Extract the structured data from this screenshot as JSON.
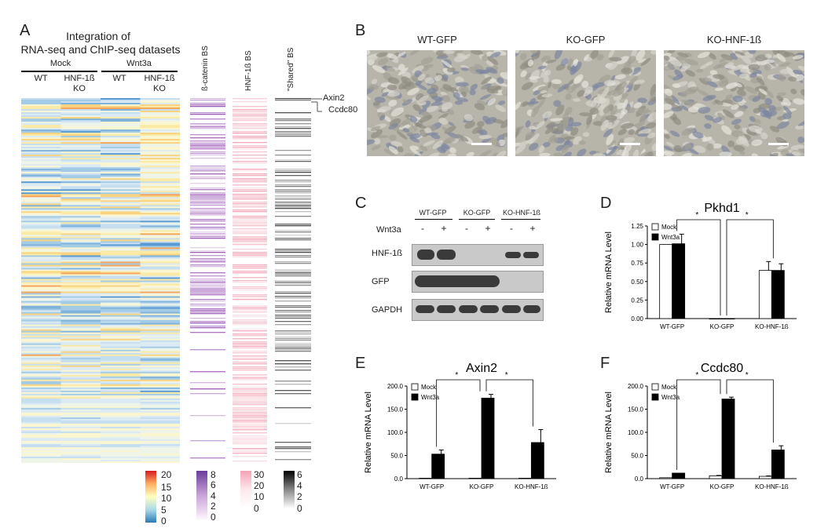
{
  "panelA": {
    "letter": "A",
    "title_line1": "Integration of",
    "title_line2": "RNA-seq and ChIP-seq datasets",
    "groups": [
      "Mock",
      "Wnt3a"
    ],
    "columns": [
      "WT",
      "HNF-1ß\nKO",
      "WT",
      "HNF-1ß\nKO"
    ],
    "tracks": [
      "ß-catenin BS",
      "HNF-1ß BS",
      "\"Shared\" BS"
    ],
    "gene_labels": [
      "Axin2",
      "Ccdc80"
    ],
    "scales": [
      {
        "ticks": [
          "20",
          "15",
          "10",
          "5",
          "0"
        ]
      },
      {
        "ticks": [
          "8",
          "6",
          "4",
          "2",
          "0"
        ]
      },
      {
        "ticks": [
          "30",
          "20",
          "10",
          "0"
        ]
      },
      {
        "ticks": [
          "6",
          "4",
          "2",
          "0"
        ]
      }
    ]
  },
  "panelB": {
    "letter": "B",
    "images": [
      "WT-GFP",
      "KO-GFP",
      "KO-HNF-1ß"
    ]
  },
  "panelC": {
    "letter": "C",
    "groups": [
      "WT-GFP",
      "KO-GFP",
      "KO-HNF-1ß"
    ],
    "treatment_label": "Wnt3a",
    "treatment_signs": [
      "-",
      "+",
      "-",
      "+",
      "-",
      "+"
    ],
    "rows": [
      "HNF-1ß",
      "GFP",
      "GAPDH"
    ]
  },
  "chart_data": [
    {
      "panel": "D",
      "type": "bar",
      "title": "Pkhd1",
      "ylabel": "Relative mRNA Level",
      "categories": [
        "WT-GFP",
        "KO-GFP",
        "KO-HNF-1ß"
      ],
      "ylim": [
        0,
        1.25
      ],
      "yticks": [
        "0.00",
        "0.25",
        "0.50",
        "0.75",
        "1.00",
        "1.25"
      ],
      "series": [
        {
          "name": "Mock",
          "color": "#ffffff",
          "values": [
            1.0,
            0.0,
            0.65
          ],
          "errors": [
            0.0,
            0.0,
            0.12
          ]
        },
        {
          "name": "Wnt3a",
          "color": "#000000",
          "values": [
            1.01,
            0.0,
            0.65
          ],
          "errors": [
            0.13,
            0.0,
            0.09
          ]
        }
      ],
      "significance": [
        "*",
        "*"
      ],
      "legend": "top-left"
    },
    {
      "panel": "E",
      "type": "bar",
      "title": "Axin2",
      "ylabel": "Relative mRNA Level",
      "categories": [
        "WT-GFP",
        "KO-GFP",
        "KO-HNF-1ß"
      ],
      "ylim": [
        0,
        200
      ],
      "yticks": [
        "0.0",
        "50.0",
        "100.0",
        "150.0",
        "200.0"
      ],
      "series": [
        {
          "name": "Mock",
          "color": "#ffffff",
          "values": [
            1,
            1,
            1
          ],
          "errors": [
            0,
            0,
            0
          ]
        },
        {
          "name": "Wnt3a",
          "color": "#000000",
          "values": [
            53,
            174,
            78
          ],
          "errors": [
            9,
            8,
            28
          ]
        }
      ],
      "significance": [
        "*",
        "*"
      ],
      "legend": "top-left"
    },
    {
      "panel": "F",
      "type": "bar",
      "title": "Ccdc80",
      "ylabel": "Relative mRNA Level",
      "categories": [
        "WT-GFP",
        "KO-GFP",
        "KO-HNF-1ß"
      ],
      "ylim": [
        0,
        200
      ],
      "yticks": [
        "0.0",
        "50.0",
        "100.0",
        "150.0",
        "200.0"
      ],
      "series": [
        {
          "name": "Mock",
          "color": "#ffffff",
          "values": [
            2,
            6,
            5
          ],
          "errors": [
            0,
            1,
            1
          ]
        },
        {
          "name": "Wnt3a",
          "color": "#000000",
          "values": [
            12,
            172,
            62
          ],
          "errors": [
            0,
            4,
            9
          ]
        }
      ],
      "significance": [
        "*",
        "*"
      ],
      "legend": "top-left"
    }
  ]
}
